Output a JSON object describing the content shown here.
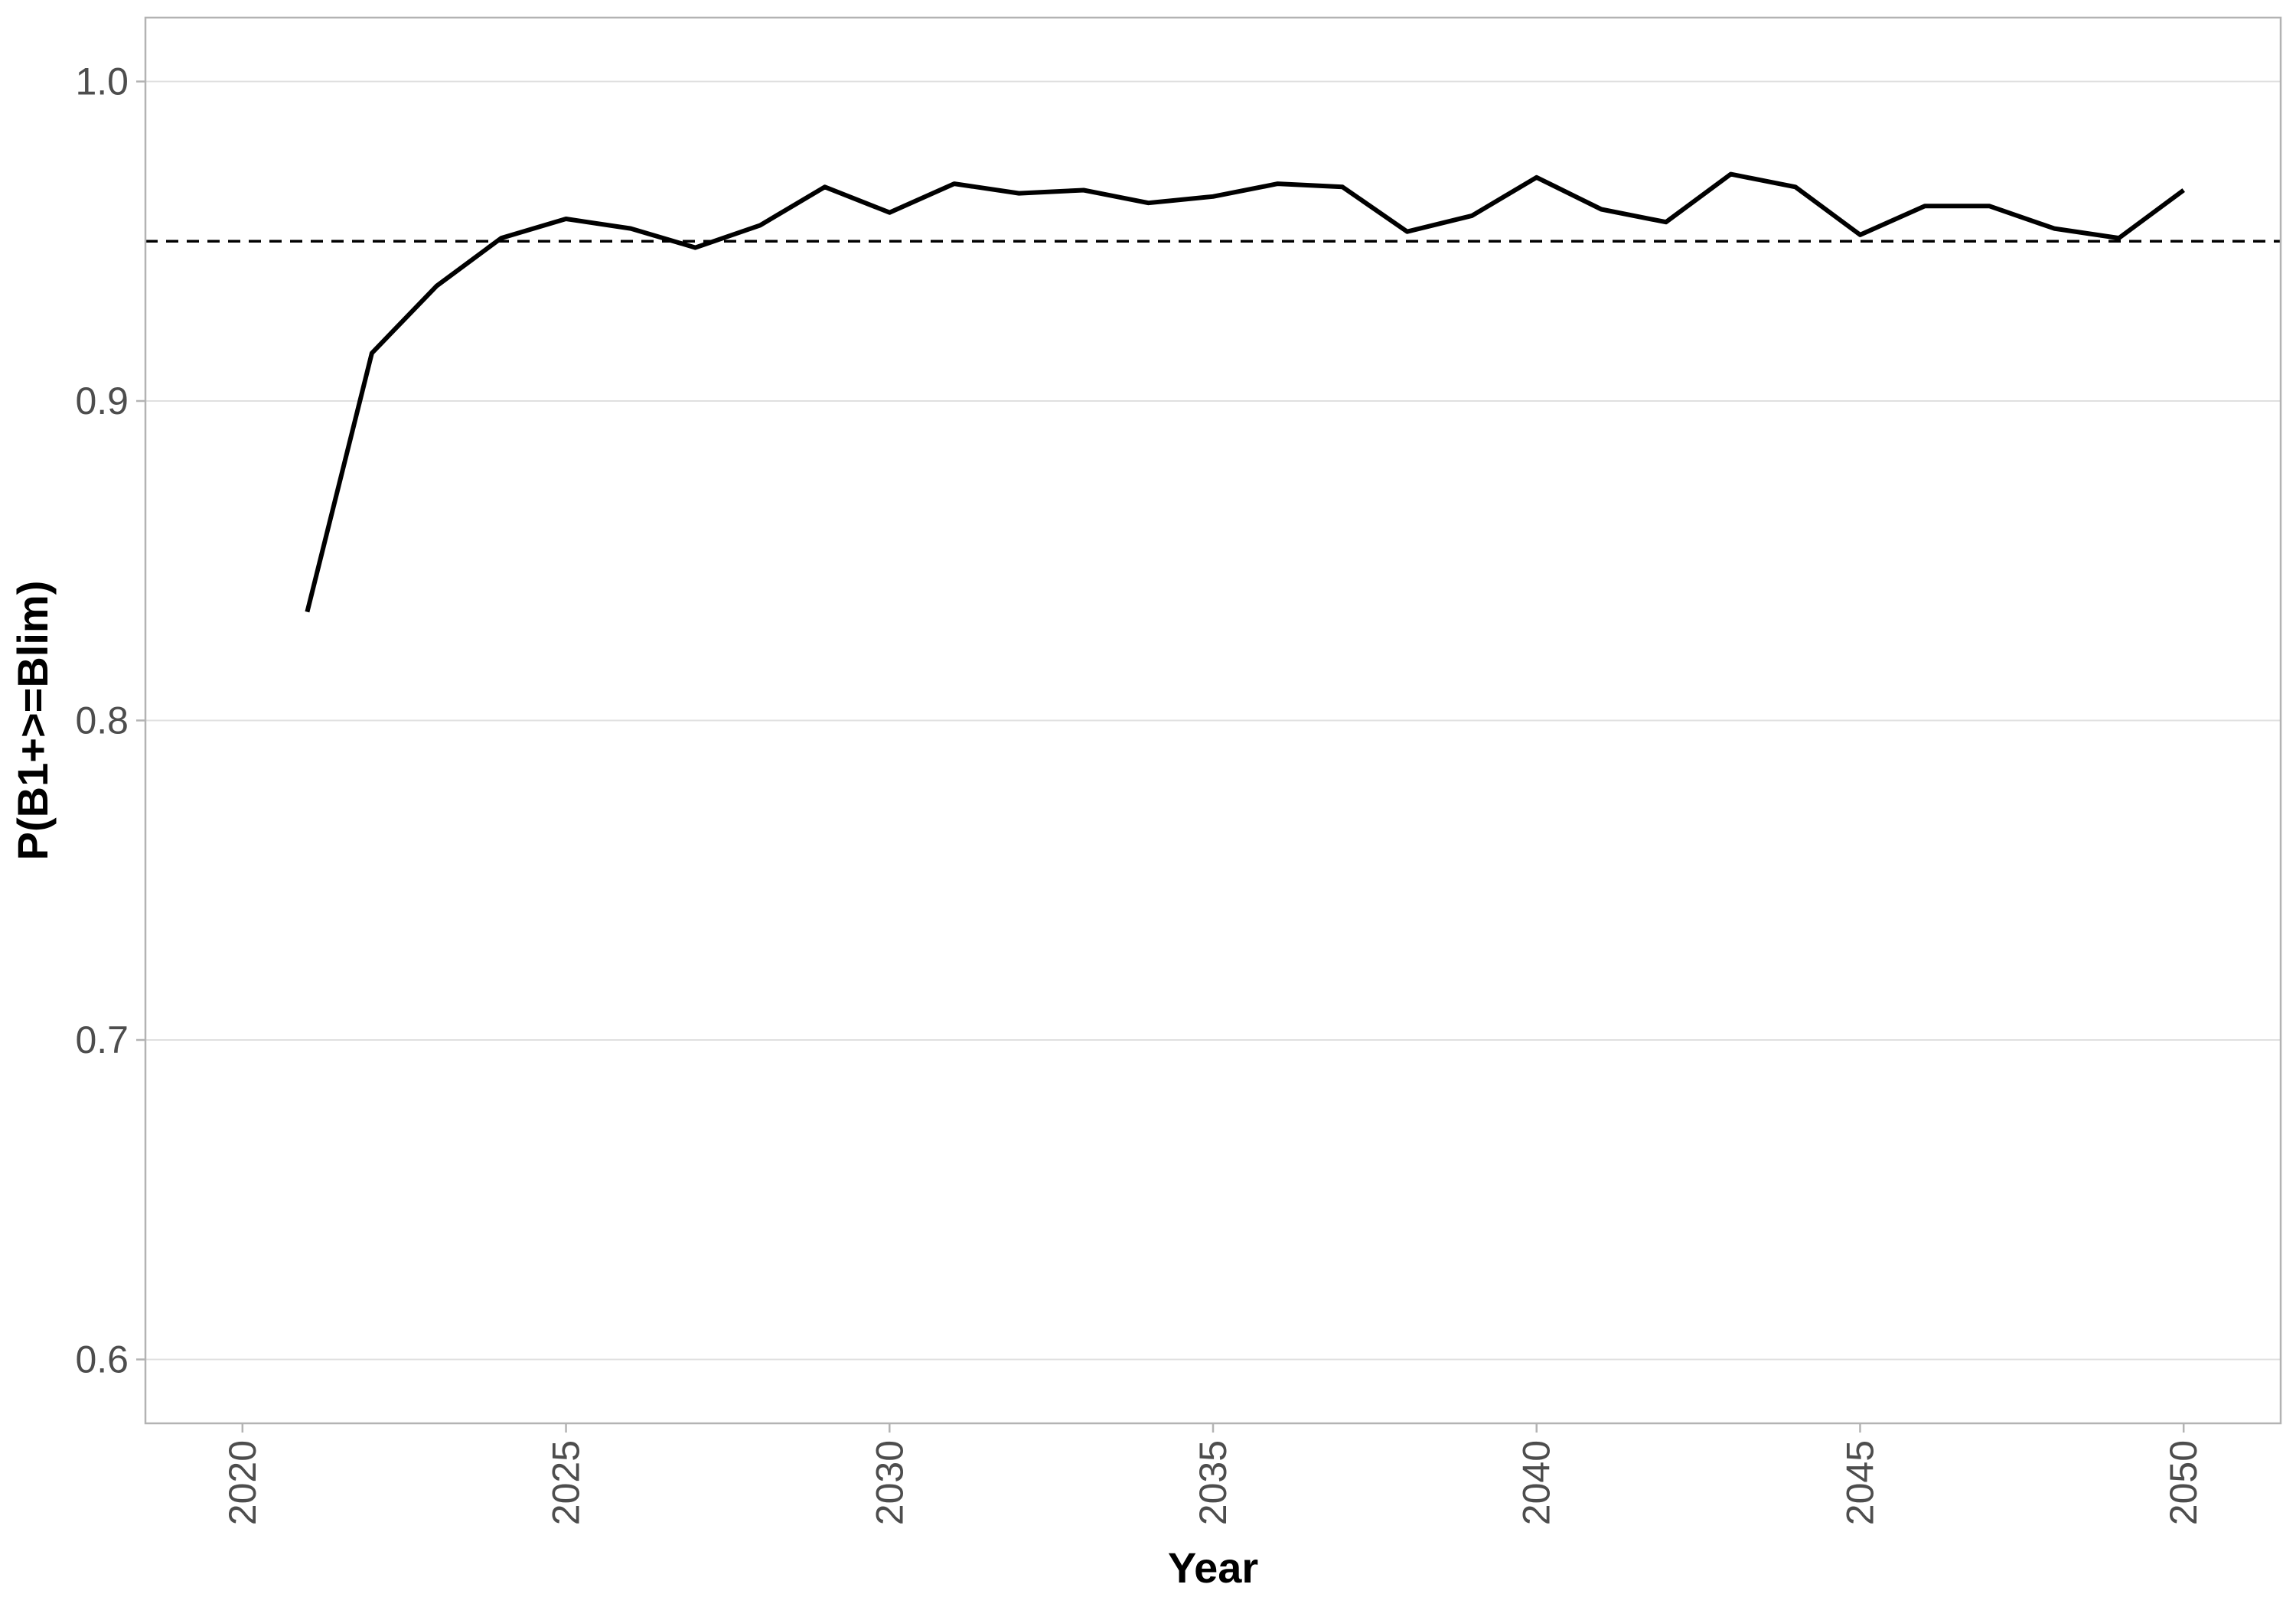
{
  "chart_data": {
    "type": "line",
    "title": "",
    "xlabel": "Year",
    "ylabel": "P(B1+>=Blim)",
    "xlim": [
      2018.5,
      2051.5
    ],
    "ylim": [
      0.58,
      1.02
    ],
    "x_ticks": [
      2020,
      2025,
      2030,
      2035,
      2040,
      2045,
      2050
    ],
    "x_tick_labels": [
      "2020",
      "2025",
      "2030",
      "2035",
      "2040",
      "2045",
      "2050"
    ],
    "y_ticks": [
      0.6,
      0.7,
      0.8,
      0.9,
      1.0
    ],
    "y_tick_labels": [
      "0.6",
      "0.7",
      "0.8",
      "0.9",
      "1.0"
    ],
    "grid": "horizontal major",
    "x_tick_label_rotation": "vertical",
    "series": [
      {
        "x": [
          2021,
          2022,
          2023,
          2024,
          2025,
          2026,
          2027,
          2028,
          2029,
          2030,
          2031,
          2032,
          2033,
          2034,
          2035,
          2036,
          2037,
          2038,
          2039,
          2040,
          2041,
          2042,
          2043,
          2044,
          2045,
          2046,
          2047,
          2048,
          2049,
          2050
        ],
        "values": [
          0.834,
          0.915,
          0.936,
          0.951,
          0.957,
          0.954,
          0.948,
          0.955,
          0.967,
          0.959,
          0.968,
          0.965,
          0.966,
          0.962,
          0.964,
          0.968,
          0.967,
          0.953,
          0.958,
          0.97,
          0.96,
          0.956,
          0.971,
          0.967,
          0.952,
          0.961,
          0.961,
          0.954,
          0.951,
          0.966
        ],
        "color": "#000000",
        "line_style": "solid"
      }
    ],
    "reference_lines": [
      {
        "axis": "y",
        "value": 0.95,
        "color": "#000000",
        "line_style": "dashed"
      }
    ]
  }
}
